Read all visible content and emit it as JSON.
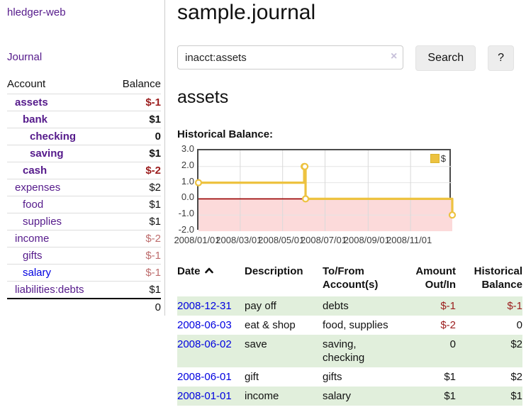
{
  "app": {
    "title": "hledger-web"
  },
  "sidebar": {
    "journal_link": "Journal",
    "accounts_table": {
      "headers": [
        "Account",
        "Balance"
      ],
      "rows": [
        {
          "name": "assets",
          "depth": 1,
          "bold": true,
          "balance": "$-1",
          "balance_class": "neg-strong"
        },
        {
          "name": "bank",
          "depth": 2,
          "bold": true,
          "balance": "$1",
          "balance_class": ""
        },
        {
          "name": "checking",
          "depth": 3,
          "bold": true,
          "balance": "0",
          "balance_class": ""
        },
        {
          "name": "saving",
          "depth": 3,
          "bold": true,
          "balance": "$1",
          "balance_class": ""
        },
        {
          "name": "cash",
          "depth": 2,
          "bold": true,
          "balance": "$-2",
          "balance_class": "neg-strong"
        },
        {
          "name": "expenses",
          "depth": 1,
          "bold": false,
          "balance": "$2",
          "balance_class": ""
        },
        {
          "name": "food",
          "depth": 2,
          "bold": false,
          "balance": "$1",
          "balance_class": ""
        },
        {
          "name": "supplies",
          "depth": 2,
          "bold": false,
          "balance": "$1",
          "balance_class": ""
        },
        {
          "name": "income",
          "depth": 1,
          "bold": false,
          "balance": "$-2",
          "balance_class": "neg-soft"
        },
        {
          "name": "gifts",
          "depth": 2,
          "bold": false,
          "balance": "$-1",
          "balance_class": "neg-soft"
        },
        {
          "name": "salary",
          "depth": 2,
          "bold": false,
          "link_color": "blue",
          "balance": "$-1",
          "balance_class": "neg-soft"
        },
        {
          "name": "liabilities:debts",
          "depth": 1,
          "bold": false,
          "balance": "$1",
          "balance_class": ""
        }
      ],
      "total": "0"
    }
  },
  "header": {
    "title": "sample.journal"
  },
  "search": {
    "value": "inacct:assets",
    "clear_icon": "×",
    "button_label": "Search",
    "help_label": "?"
  },
  "account_page": {
    "title": "assets",
    "chart_label": "Historical Balance:"
  },
  "chart_data": {
    "type": "line",
    "title": "Historical Balance:",
    "step": true,
    "x_range": [
      "2008-01-01",
      "2008-12-31"
    ],
    "ylim": [
      -2,
      3
    ],
    "y_ticks": [
      3,
      2,
      1,
      0,
      -1,
      -2
    ],
    "x_ticks": [
      "2008/01/01",
      "2008/03/01",
      "2008/05/01",
      "2008/07/01",
      "2008/09/01",
      "2008/11/01"
    ],
    "series": [
      {
        "name": "$",
        "color": "#edc240",
        "points": [
          [
            "2008-01-01",
            1
          ],
          [
            "2008-06-01",
            2
          ],
          [
            "2008-06-02",
            2
          ],
          [
            "2008-06-03",
            0
          ],
          [
            "2008-12-31",
            -1
          ]
        ]
      }
    ],
    "legend_position": "top-right",
    "grid": true,
    "negative_region_color": "#fcdada",
    "zero_line_color": "#990000"
  },
  "register_table": {
    "headers": {
      "date": "Date",
      "description": "Description",
      "accounts_line1": "To/From",
      "accounts_line2": "Account(s)",
      "amount_line1": "Amount",
      "amount_line2": "Out/In",
      "balance_line1": "Historical",
      "balance_line2": "Balance"
    },
    "rows": [
      {
        "date": "2008-12-31",
        "description": "pay off",
        "accounts": "debts",
        "amount": "$-1",
        "amount_class": "neg-strong",
        "balance": "$-1",
        "balance_class": "neg-strong",
        "shaded": true
      },
      {
        "date": "2008-06-03",
        "description": "eat & shop",
        "accounts": "food, supplies",
        "amount": "$-2",
        "amount_class": "neg-strong",
        "balance": "0",
        "balance_class": "",
        "shaded": false
      },
      {
        "date": "2008-06-02",
        "description": "save",
        "accounts": "saving, checking",
        "amount": "0",
        "amount_class": "",
        "balance": "$2",
        "balance_class": "",
        "shaded": true
      },
      {
        "date": "2008-06-01",
        "description": "gift",
        "accounts": "gifts",
        "amount": "$1",
        "amount_class": "",
        "balance": "$2",
        "balance_class": "",
        "shaded": false
      },
      {
        "date": "2008-01-01",
        "description": "income",
        "accounts": "salary",
        "amount": "$1",
        "amount_class": "",
        "balance": "$1",
        "balance_class": "",
        "shaded": true
      }
    ]
  }
}
